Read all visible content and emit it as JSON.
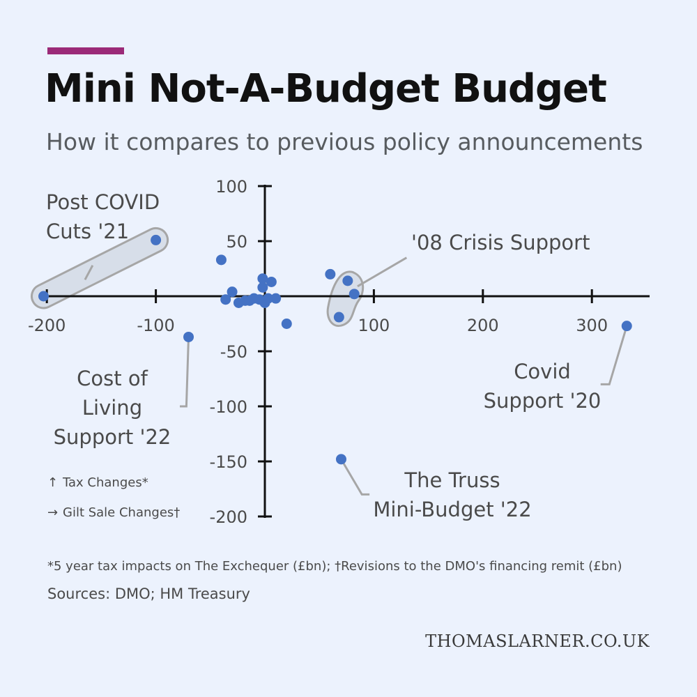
{
  "colors": {
    "accent": "#9b2a78",
    "point": "#4472c4",
    "axis": "#111111",
    "callout": "#a6a6a6",
    "background": "#ecf2fd"
  },
  "title": "Mini Not-A-Budget Budget",
  "subtitle": "How it compares to previous policy announcements",
  "legend": {
    "y_arrow": "↑",
    "y_label": "Tax Changes*",
    "x_arrow": "→",
    "x_label": "Gilt Sale Changes†"
  },
  "footnote": "*5 year tax impacts on The Exchequer (£bn); †Revisions to the DMO's financing remit (£bn)",
  "sources": "Sources: DMO; HM Treasury",
  "site": "THOMASLARNER.CO.UK",
  "chart_data": {
    "type": "scatter",
    "title": "",
    "xlabel": "Gilt Sale Changes†",
    "ylabel": "Tax Changes*",
    "xlim": [
      -200,
      350
    ],
    "ylim": [
      -200,
      100
    ],
    "grid": false,
    "x_ticks": [
      "-200",
      "-100",
      "100",
      "200",
      "300"
    ],
    "y_ticks": [
      "100",
      "50",
      "-50",
      "-100",
      "-150",
      "-200"
    ],
    "points": [
      {
        "x": -203,
        "y": 0
      },
      {
        "x": -100,
        "y": 51
      },
      {
        "x": -70,
        "y": -37
      },
      {
        "x": -40,
        "y": 33
      },
      {
        "x": -36,
        "y": -3
      },
      {
        "x": -30,
        "y": 4
      },
      {
        "x": -24,
        "y": -6
      },
      {
        "x": -18,
        "y": -4
      },
      {
        "x": -14,
        "y": -4
      },
      {
        "x": -10,
        "y": -2
      },
      {
        "x": -5,
        "y": -3
      },
      {
        "x": -2,
        "y": 16
      },
      {
        "x": -2,
        "y": 8
      },
      {
        "x": 0,
        "y": -6
      },
      {
        "x": 3,
        "y": -2
      },
      {
        "x": 6,
        "y": 13
      },
      {
        "x": 10,
        "y": -2
      },
      {
        "x": 20,
        "y": -25
      },
      {
        "x": 60,
        "y": 20
      },
      {
        "x": 68,
        "y": -19
      },
      {
        "x": 76,
        "y": 14
      },
      {
        "x": 82,
        "y": 2
      },
      {
        "x": 70,
        "y": -148
      },
      {
        "x": 332,
        "y": -27
      }
    ],
    "annotations": [
      {
        "lines": [
          "Post COVID",
          "Cuts '21"
        ]
      },
      {
        "lines": [
          "'08 Crisis Support"
        ]
      },
      {
        "lines": [
          "Cost of",
          "Living",
          "Support '22"
        ]
      },
      {
        "lines": [
          "Covid",
          "Support '20"
        ]
      },
      {
        "lines": [
          "The Truss",
          "Mini-Budget '22"
        ]
      }
    ]
  }
}
